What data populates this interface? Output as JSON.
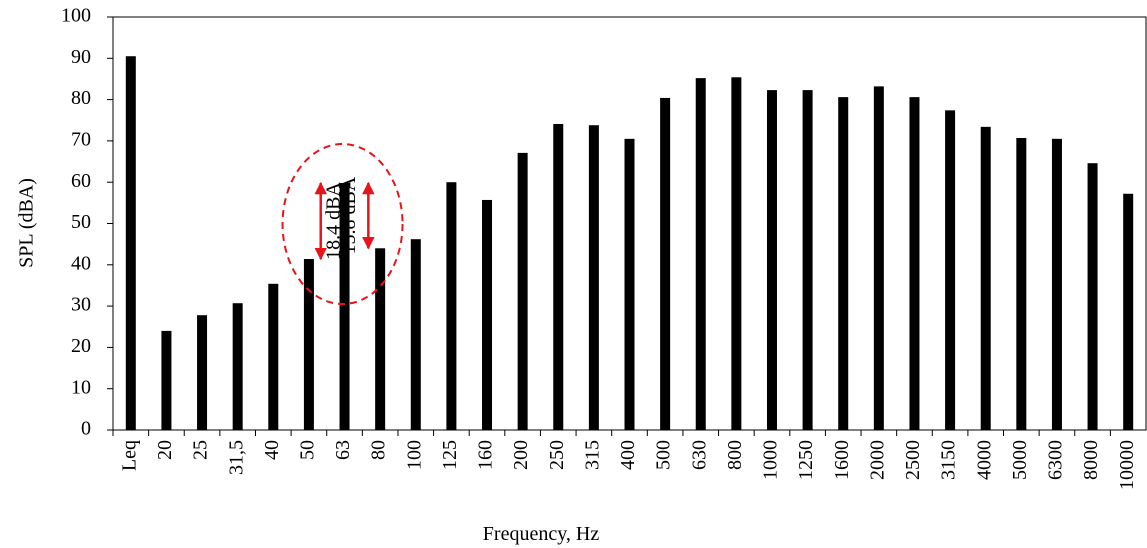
{
  "chart_data": {
    "type": "bar",
    "x_label": "Frequency, Hz",
    "y_label": "SPL (dBA)",
    "categories": [
      "Leq",
      "20",
      "25",
      "31,5",
      "40",
      "50",
      "63",
      "80",
      "100",
      "125",
      "160",
      "200",
      "250",
      "315",
      "400",
      "500",
      "630",
      "800",
      "1000",
      "1250",
      "1600",
      "2000",
      "2500",
      "3150",
      "4000",
      "5000",
      "6300",
      "8000",
      "10000"
    ],
    "values": [
      90.5,
      24,
      27.8,
      30.7,
      35.4,
      41.4,
      59.8,
      44.0,
      46.2,
      60.0,
      55.7,
      67.1,
      74.1,
      73.8,
      70.5,
      80.4,
      85.2,
      85.4,
      82.3,
      82.3,
      80.6,
      83.2,
      80.6,
      77.4,
      73.4,
      70.7,
      70.5,
      64.6,
      57.2
    ],
    "color": "#000000",
    "ylim": [
      0,
      100
    ],
    "yticks": [
      0,
      10,
      20,
      30,
      40,
      50,
      60,
      70,
      80,
      90,
      100
    ],
    "grid": false,
    "annotations": [
      {
        "text": "18.4 dBA",
        "from": 5,
        "to": 6,
        "color": "#e8141c"
      },
      {
        "text": "15.8 dBA",
        "from": 7,
        "to": 6,
        "color": "#e8141c"
      }
    ]
  }
}
